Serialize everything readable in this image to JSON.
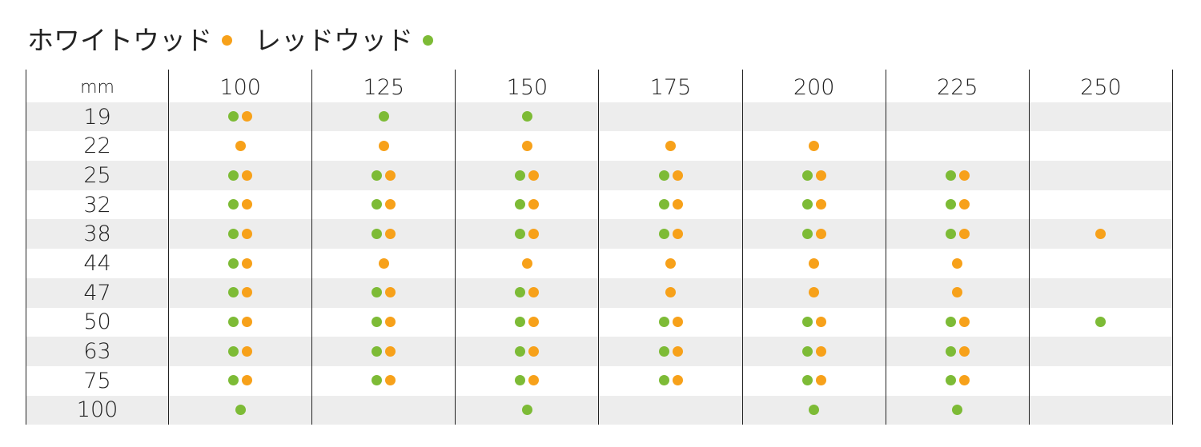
{
  "colors": {
    "white_wood": "#f7a11a",
    "red_wood": "#7dbb36",
    "row_shade": "#ededed",
    "grid_line": "#222222"
  },
  "legend": [
    {
      "label": "ホワイトウッド",
      "color": "#f7a11a"
    },
    {
      "label": "レッドウッド",
      "color": "#7dbb36"
    }
  ],
  "table": {
    "corner_label": "mm",
    "columns": [
      "100",
      "125",
      "150",
      "175",
      "200",
      "225",
      "250"
    ],
    "rows": [
      {
        "label": "19",
        "cells": [
          "GW",
          "G",
          "G",
          "",
          "",
          "",
          ""
        ]
      },
      {
        "label": "22",
        "cells": [
          "W",
          "W",
          "W",
          "W",
          "W",
          "",
          ""
        ]
      },
      {
        "label": "25",
        "cells": [
          "GW",
          "GW",
          "GW",
          "GW",
          "GW",
          "GW",
          ""
        ]
      },
      {
        "label": "32",
        "cells": [
          "GW",
          "GW",
          "GW",
          "GW",
          "GW",
          "GW",
          ""
        ]
      },
      {
        "label": "38",
        "cells": [
          "GW",
          "GW",
          "GW",
          "GW",
          "GW",
          "GW",
          "W"
        ]
      },
      {
        "label": "44",
        "cells": [
          "GW",
          "W",
          "W",
          "W",
          "W",
          "W",
          ""
        ]
      },
      {
        "label": "47",
        "cells": [
          "GW",
          "GW",
          "GW",
          "W",
          "W",
          "W",
          ""
        ]
      },
      {
        "label": "50",
        "cells": [
          "GW",
          "GW",
          "GW",
          "GW",
          "GW",
          "GW",
          "G"
        ]
      },
      {
        "label": "63",
        "cells": [
          "GW",
          "GW",
          "GW",
          "GW",
          "GW",
          "GW",
          ""
        ]
      },
      {
        "label": "75",
        "cells": [
          "GW",
          "GW",
          "GW",
          "GW",
          "GW",
          "GW",
          ""
        ]
      },
      {
        "label": "100",
        "cells": [
          "G",
          "",
          "G",
          "",
          "G",
          "G",
          ""
        ]
      }
    ]
  }
}
